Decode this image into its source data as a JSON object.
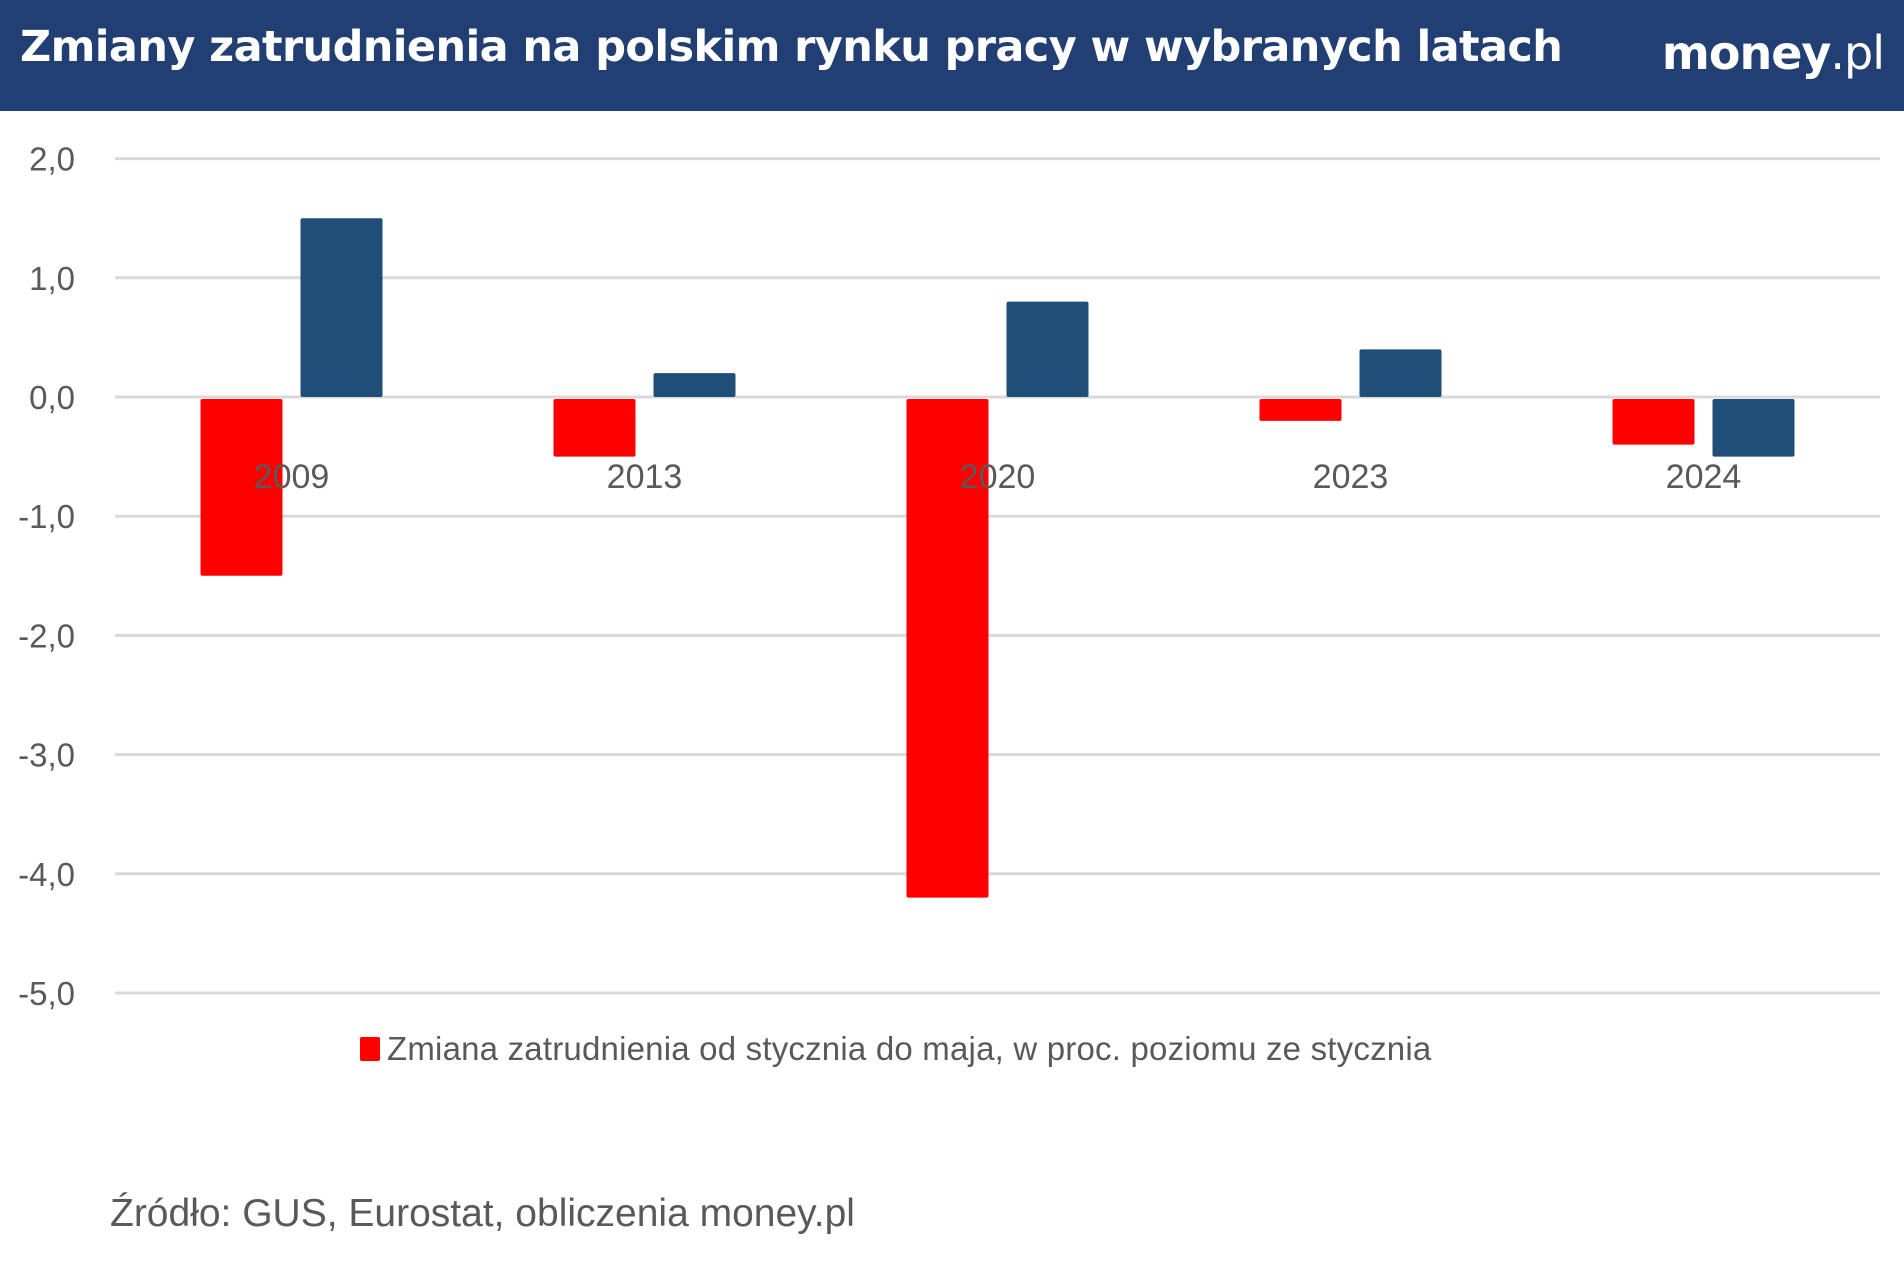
{
  "header": {
    "title": "Zmiany zatrudnienia na polskim rynku pracy w wybranych latach",
    "logo_brand": "money",
    "logo_tld": ".pl",
    "background_color": "#213f73"
  },
  "legend": {
    "items": [
      {
        "label": "Zmiana zatrudnienia od stycznia do maja, w proc. poziomu ze stycznia",
        "color": "#ff0000"
      }
    ]
  },
  "source": "Źródło: GUS, Eurostat, obliczenia money.pl",
  "chart_data": {
    "type": "bar",
    "title": "Zmiany zatrudnienia na polskim rynku pracy w wybranych latach",
    "xlabel": "",
    "ylabel": "",
    "categories": [
      "2009",
      "2013",
      "2020",
      "2023",
      "2024"
    ],
    "series": [
      {
        "name": "Zmiana zatrudnienia od stycznia do maja, w proc. poziomu ze stycznia",
        "color": "#ff0000",
        "values": [
          -1.5,
          -0.5,
          -4.2,
          -0.2,
          -0.4
        ]
      },
      {
        "name": "",
        "color": "#1f4e79",
        "values": [
          1.5,
          0.2,
          0.8,
          0.4,
          -0.5
        ]
      }
    ],
    "ylim": [
      -5.0,
      2.0
    ],
    "yticks": [
      "2,0",
      "1,0",
      "0,0",
      "-1,0",
      "-2,0",
      "-3,0",
      "-4,0",
      "-5,0"
    ],
    "ytick_values": [
      2,
      1,
      0,
      -1,
      -2,
      -3,
      -4,
      -5
    ],
    "grid": true,
    "legend_position": "bottom",
    "category_labels_position": "near zero line"
  }
}
